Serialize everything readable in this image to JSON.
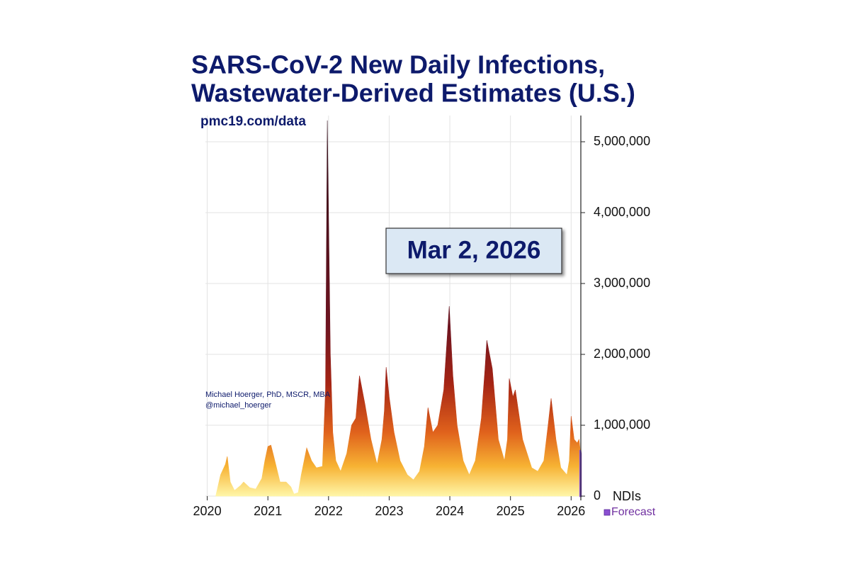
{
  "chart_data": {
    "type": "area",
    "title": [
      "SARS-CoV-2 New Daily Infections,",
      "Wastewater-Derived Estimates (U.S.)"
    ],
    "source": "pmc19.com/data",
    "credit": [
      "Michael Hoerger, PhD, MSCR, MBA",
      "@michael_hoerger"
    ],
    "annotation": "Mar 2, 2026",
    "y_label": "NDIs",
    "xlim": [
      2019.97,
      2026.16
    ],
    "xticks": [
      2020,
      2021,
      2022,
      2023,
      2024,
      2025,
      2026
    ],
    "ylim": [
      0,
      5370000
    ],
    "yticks": [
      0,
      {
        "value": 1000000,
        "label": "1,000,000"
      },
      {
        "value": 2000000,
        "label": "2,000,000"
      },
      {
        "value": 3000000,
        "label": "3,000,000"
      },
      {
        "value": 4000000,
        "label": "4,000,000"
      },
      {
        "value": 5000000,
        "label": "5,000,000"
      }
    ],
    "grid": true,
    "legend": "bottom-right",
    "series": [
      {
        "color": "gradient",
        "x": [
          2020.14,
          2020.22,
          2020.3,
          2020.33,
          2020.38,
          2020.45,
          2020.55,
          2020.6,
          2020.7,
          2020.8,
          2020.9,
          2020.95,
          2021.0,
          2021.05,
          2021.1,
          2021.2,
          2021.3,
          2021.38,
          2021.43,
          2021.5,
          2021.55,
          2021.64,
          2021.72,
          2021.8,
          2021.9,
          2021.95,
          2021.98,
          2022.03,
          2022.07,
          2022.12,
          2022.2,
          2022.3,
          2022.38,
          2022.45,
          2022.51,
          2022.6,
          2022.7,
          2022.8,
          2022.88,
          2022.92,
          2022.95,
          2023.0,
          2023.08,
          2023.18,
          2023.3,
          2023.4,
          2023.5,
          2023.58,
          2023.64,
          2023.72,
          2023.8,
          2023.9,
          2023.99,
          2024.05,
          2024.12,
          2024.22,
          2024.32,
          2024.42,
          2024.52,
          2024.58,
          2024.61,
          2024.7,
          2024.8,
          2024.9,
          2024.95,
          2024.98,
          2025.04,
          2025.08,
          2025.2,
          2025.35,
          2025.45,
          2025.55,
          2025.62,
          2025.67,
          2025.75,
          2025.83,
          2025.93,
          2025.97,
          2026.0,
          2026.05,
          2026.1,
          2026.13,
          2026.15
        ],
        "values": [
          0,
          300000,
          450000,
          560000,
          200000,
          80000,
          150000,
          200000,
          120000,
          100000,
          250000,
          500000,
          700000,
          720000,
          550000,
          200000,
          200000,
          130000,
          30000,
          50000,
          300000,
          680000,
          500000,
          400000,
          420000,
          1500000,
          5300000,
          2000000,
          900000,
          500000,
          350000,
          600000,
          1000000,
          1100000,
          1700000,
          1300000,
          800000,
          450000,
          800000,
          1200000,
          1820000,
          1400000,
          900000,
          500000,
          300000,
          230000,
          350000,
          700000,
          1250000,
          900000,
          1000000,
          1500000,
          2680000,
          1700000,
          1000000,
          500000,
          300000,
          500000,
          1100000,
          1800000,
          2200000,
          1800000,
          800000,
          500000,
          800000,
          1660000,
          1400000,
          1500000,
          800000,
          400000,
          350000,
          500000,
          1000000,
          1380000,
          800000,
          400000,
          300000,
          500000,
          1130000,
          800000,
          750000,
          800000,
          650000
        ]
      },
      {
        "name": "Forecast",
        "color": "#8a4fd1",
        "x": [
          2026.15,
          2026.16
        ],
        "values": [
          650000,
          600000
        ]
      }
    ]
  }
}
